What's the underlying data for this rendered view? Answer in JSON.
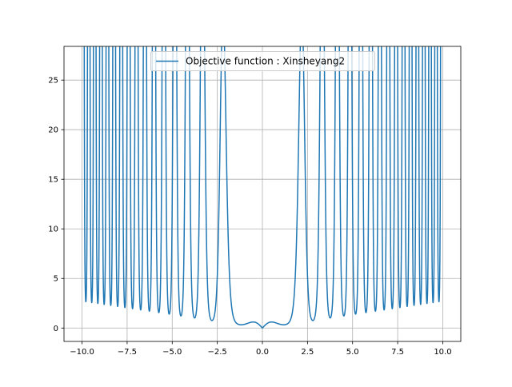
{
  "chart_data": {
    "type": "line",
    "title": "",
    "xlabel": "",
    "ylabel": "",
    "xlim": [
      -11.0,
      11.0
    ],
    "ylim": [
      -1.35,
      28.4
    ],
    "x_ticks": [
      -10.0,
      -7.5,
      -5.0,
      -2.5,
      0.0,
      2.5,
      5.0,
      7.5,
      10.0
    ],
    "x_tick_labels": [
      "−10.0",
      "−7.5",
      "−5.0",
      "−2.5",
      "0.0",
      "2.5",
      "5.0",
      "7.5",
      "10.0"
    ],
    "y_ticks": [
      0,
      5,
      10,
      15,
      20,
      25
    ],
    "y_tick_labels": [
      "0",
      "5",
      "10",
      "15",
      "20",
      "25"
    ],
    "grid": true,
    "legend_position": "upper center",
    "series": [
      {
        "name": "Objective function : Xinsheyang2",
        "color": "#1f77b4",
        "function": "(|x1| + |x2|) * exp(-(sin(x1^2) + sin(x2^2))) evaluated at x1 = x2 = x",
        "x_range": [
          -10.0,
          10.0
        ],
        "samples": 4000,
        "points": [
          [
            -10.0,
            16.6
          ],
          [
            -9.9,
            27.1
          ],
          [
            -9.78,
            3.7
          ],
          [
            -9.6,
            26.2
          ],
          [
            -9.45,
            3.6
          ],
          [
            -9.3,
            25.2
          ],
          [
            -8.9,
            24.2
          ],
          [
            -8.6,
            23.2
          ],
          [
            -8.25,
            22.1
          ],
          [
            -7.9,
            21.0
          ],
          [
            -7.5,
            19.9
          ],
          [
            -7.1,
            18.7
          ],
          [
            -6.65,
            17.6
          ],
          [
            -6.15,
            16.4
          ],
          [
            -5.6,
            14.9
          ],
          [
            -4.95,
            13.2
          ],
          [
            -4.2,
            11.3
          ],
          [
            -3.3,
            9.0
          ],
          [
            -2.75,
            1.0
          ],
          [
            -2.2,
            6.0
          ],
          [
            -1.7,
            1.2
          ],
          [
            -0.5,
            0.45
          ],
          [
            0.0,
            0.0
          ],
          [
            0.5,
            0.45
          ],
          [
            1.7,
            1.2
          ],
          [
            2.2,
            6.0
          ],
          [
            2.75,
            1.0
          ],
          [
            3.3,
            9.0
          ],
          [
            4.2,
            11.3
          ],
          [
            4.95,
            13.2
          ],
          [
            5.6,
            14.9
          ],
          [
            6.15,
            16.4
          ],
          [
            6.65,
            17.6
          ],
          [
            7.1,
            18.7
          ],
          [
            7.5,
            19.9
          ],
          [
            7.9,
            21.0
          ],
          [
            8.25,
            22.1
          ],
          [
            8.6,
            23.2
          ],
          [
            8.9,
            24.2
          ],
          [
            9.3,
            25.2
          ],
          [
            9.6,
            26.2
          ],
          [
            9.9,
            27.1
          ],
          [
            10.0,
            19.5
          ]
        ]
      }
    ]
  }
}
